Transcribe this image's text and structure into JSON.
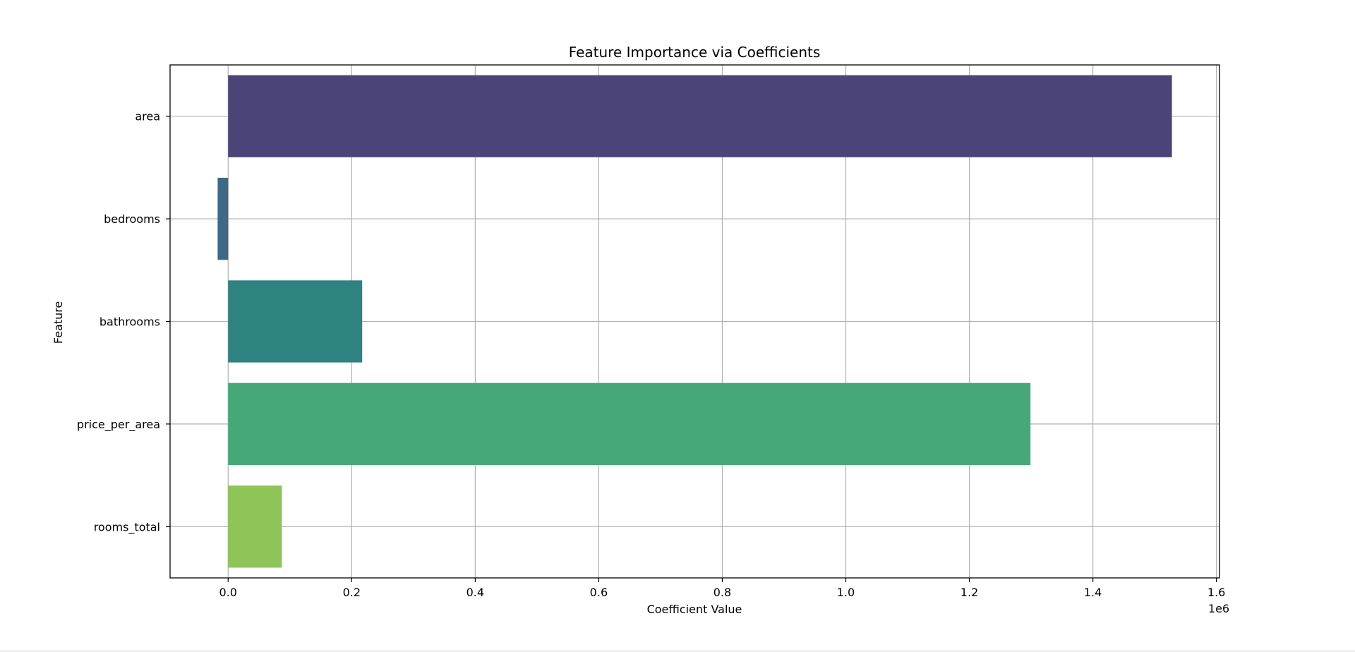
{
  "chart_data": {
    "type": "bar",
    "orientation": "horizontal",
    "title": "Feature Importance via Coefficients",
    "xlabel": "Coefficient Value",
    "ylabel": "Feature",
    "x_offset_label": "1e6",
    "categories": [
      "area",
      "bedrooms",
      "bathrooms",
      "price_per_area",
      "rooms_total"
    ],
    "values": [
      1528000,
      -17000,
      217000,
      1299000,
      87000
    ],
    "value_scale": 1000000,
    "xlim": [
      -0.094,
      1.605
    ],
    "xticks": [
      0.0,
      0.2,
      0.4,
      0.6,
      0.8,
      1.0,
      1.2,
      1.4,
      1.6
    ],
    "xtick_labels": [
      "0.0",
      "0.2",
      "0.4",
      "0.6",
      "0.8",
      "1.0",
      "1.2",
      "1.4",
      "1.6"
    ],
    "grid": true,
    "colors": [
      "#4b4478",
      "#3d6986",
      "#2e827f",
      "#46a878",
      "#8fc458"
    ]
  }
}
